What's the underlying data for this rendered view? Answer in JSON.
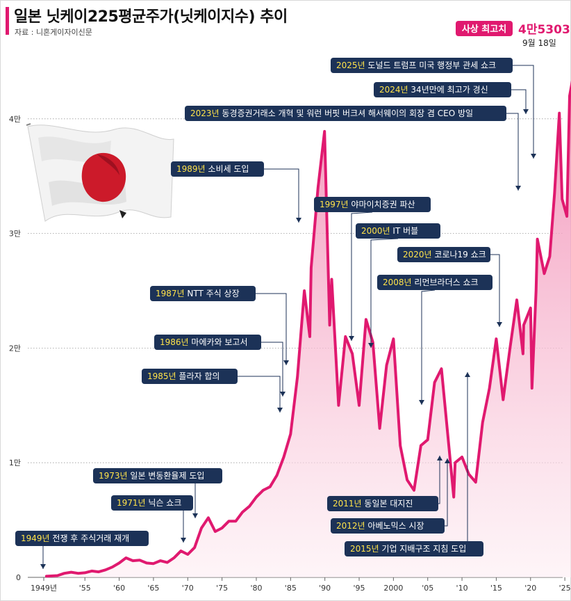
{
  "header": {
    "title": "일본 닛케이225평균주가(닛케이지수) 추이",
    "source": "자료 : 니혼게이자이신문"
  },
  "colors": {
    "line": "#e0196f",
    "fill_top": "#f07aa8",
    "fill_bottom": "#fdeef3",
    "box": "#1c3257",
    "year_highlight": "#ffe34a"
  },
  "record": {
    "label": "사상 최고치",
    "value": "4만5303",
    "date": "9월 18일"
  },
  "chart_data": {
    "type": "area",
    "x_unit": "year",
    "y_unit": "엔",
    "ylim": [
      0,
      45303
    ],
    "xlim": [
      1949,
      2026
    ],
    "grid": true,
    "y_ticks": [
      {
        "value": 0,
        "label": "0"
      },
      {
        "value": 10000,
        "label": "1만"
      },
      {
        "value": 20000,
        "label": "2만"
      },
      {
        "value": 30000,
        "label": "3만"
      },
      {
        "value": 40000,
        "label": "4만"
      }
    ],
    "x_ticks": [
      {
        "value": 1949,
        "label": "1949년"
      },
      {
        "value": 1955,
        "label": "'55"
      },
      {
        "value": 1960,
        "label": "'60"
      },
      {
        "value": 1965,
        "label": "'65"
      },
      {
        "value": 1970,
        "label": "'70"
      },
      {
        "value": 1975,
        "label": "'75"
      },
      {
        "value": 1980,
        "label": "'80"
      },
      {
        "value": 1985,
        "label": "'85"
      },
      {
        "value": 1990,
        "label": "'90"
      },
      {
        "value": 1995,
        "label": "'95"
      },
      {
        "value": 2000,
        "label": "2000"
      },
      {
        "value": 2005,
        "label": "'05"
      },
      {
        "value": 2010,
        "label": "'10"
      },
      {
        "value": 2015,
        "label": "'15"
      },
      {
        "value": 2020,
        "label": "'20"
      },
      {
        "value": 2025,
        "label": "'25"
      }
    ],
    "series": [
      {
        "points": [
          [
            1949.4,
            100
          ],
          [
            1951,
            150
          ],
          [
            1952,
            350
          ],
          [
            1953,
            450
          ],
          [
            1954,
            350
          ],
          [
            1955,
            400
          ],
          [
            1956,
            550
          ],
          [
            1957,
            480
          ],
          [
            1958,
            650
          ],
          [
            1959,
            900
          ],
          [
            1960,
            1250
          ],
          [
            1961,
            1700
          ],
          [
            1962,
            1450
          ],
          [
            1963,
            1500
          ],
          [
            1964,
            1250
          ],
          [
            1965,
            1200
          ],
          [
            1966,
            1450
          ],
          [
            1967,
            1300
          ],
          [
            1968,
            1700
          ],
          [
            1969,
            2300
          ],
          [
            1970,
            2000
          ],
          [
            1971,
            2600
          ],
          [
            1972,
            4300
          ],
          [
            1973,
            5200
          ],
          [
            1974,
            4000
          ],
          [
            1975,
            4300
          ],
          [
            1976,
            4900
          ],
          [
            1977,
            4900
          ],
          [
            1978,
            5700
          ],
          [
            1979,
            6200
          ],
          [
            1980,
            7000
          ],
          [
            1981,
            7600
          ],
          [
            1982,
            7900
          ],
          [
            1983,
            8900
          ],
          [
            1984,
            10500
          ],
          [
            1985,
            12500
          ],
          [
            1986,
            17500
          ],
          [
            1987,
            25000
          ],
          [
            1987.8,
            21000
          ],
          [
            1988,
            27000
          ],
          [
            1989,
            34000
          ],
          [
            1989.95,
            38900
          ],
          [
            1990.7,
            22000
          ],
          [
            1991,
            26000
          ],
          [
            1992,
            15000
          ],
          [
            1993,
            21000
          ],
          [
            1994,
            19500
          ],
          [
            1995,
            15000
          ],
          [
            1996,
            22500
          ],
          [
            1997,
            20500
          ],
          [
            1998,
            13000
          ],
          [
            1999,
            18500
          ],
          [
            2000,
            20800
          ],
          [
            2001,
            11500
          ],
          [
            2002,
            8500
          ],
          [
            2003,
            7600
          ],
          [
            2004,
            11500
          ],
          [
            2005,
            12000
          ],
          [
            2006,
            17000
          ],
          [
            2007,
            18200
          ],
          [
            2008,
            12000
          ],
          [
            2008.8,
            7000
          ],
          [
            2009,
            10000
          ],
          [
            2010,
            10500
          ],
          [
            2011,
            9000
          ],
          [
            2012,
            8300
          ],
          [
            2013,
            13500
          ],
          [
            2014,
            16500
          ],
          [
            2015,
            20800
          ],
          [
            2016,
            15500
          ],
          [
            2017,
            20000
          ],
          [
            2018,
            24200
          ],
          [
            2018.9,
            19500
          ],
          [
            2019,
            22000
          ],
          [
            2020,
            23500
          ],
          [
            2020.2,
            16500
          ],
          [
            2020.8,
            25000
          ],
          [
            2021,
            29500
          ],
          [
            2022,
            26500
          ],
          [
            2022.8,
            28000
          ],
          [
            2023.5,
            33500
          ],
          [
            2024.2,
            40500
          ],
          [
            2024.6,
            33000
          ],
          [
            2025.3,
            31500
          ],
          [
            2025.7,
            42000
          ],
          [
            2026.7,
            45303
          ]
        ]
      }
    ],
    "annotations": [
      {
        "year": "1949년",
        "text": "전쟁 후 주식거래 재개"
      },
      {
        "year": "1971년",
        "text": "닉슨 쇼크"
      },
      {
        "year": "1973년",
        "text": "일본 변동환율제 도입"
      },
      {
        "year": "1985년",
        "text": "플라자 합의"
      },
      {
        "year": "1986년",
        "text": "마에카와 보고서"
      },
      {
        "year": "1987년",
        "text": "NTT 주식 상장"
      },
      {
        "year": "1989년",
        "text": "소비세 도입"
      },
      {
        "year": "1997년",
        "text": "야마이치증권 파산"
      },
      {
        "year": "2000년",
        "text": "IT 버블"
      },
      {
        "year": "2008년",
        "text": "리먼브라더스 쇼크"
      },
      {
        "year": "2020년",
        "text": "코로나19 쇼크"
      },
      {
        "year": "2023년",
        "text": "동경증권거래소 개혁 및 워런 버핏 버크셔 해서웨이의 회장 겸 CEO 방일"
      },
      {
        "year": "2024년",
        "text": "34년만에 최고가 경신"
      },
      {
        "year": "2025년",
        "text": "도널드 트럼프 미국 행정부 관세 쇼크"
      },
      {
        "year": "2011년",
        "text": "동일본 대지진"
      },
      {
        "year": "2012년",
        "text": "아베노믹스 시장"
      },
      {
        "year": "2015년",
        "text": "기업 지배구조 지침 도입"
      }
    ]
  }
}
